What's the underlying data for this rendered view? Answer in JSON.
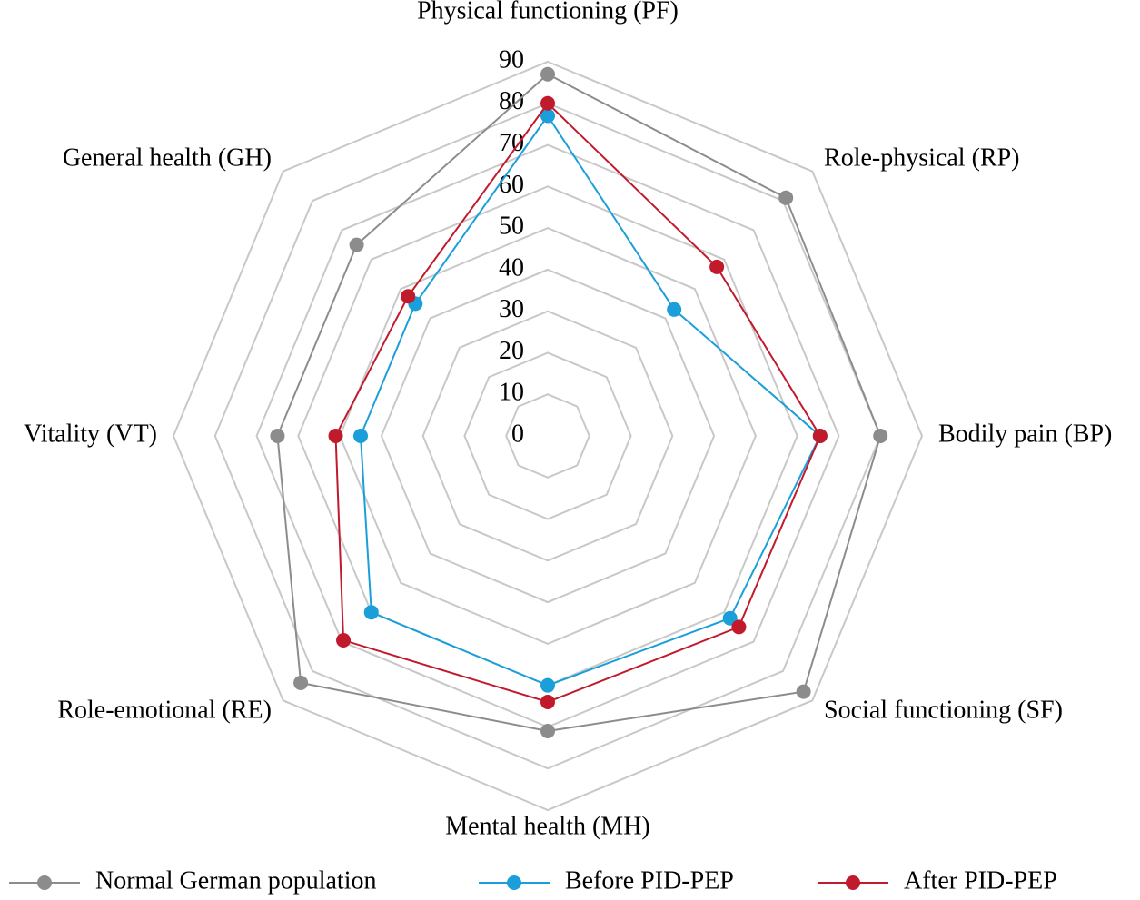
{
  "chart_data": {
    "type": "radar",
    "categories": [
      "Physical functioning (PF)",
      "Role-physical (RP)",
      "Bodily pain (BP)",
      "Social functioning (SF)",
      "Mental health (MH)",
      "Role-emotional (RE)",
      "Vitality (VT)",
      "General health (GH)"
    ],
    "series": [
      {
        "name": "Normal German population",
        "color": "#8c8c8c",
        "values": [
          87,
          81,
          80,
          87,
          71,
          84,
          65,
          65
        ]
      },
      {
        "name": "Before PID-PEP",
        "color": "#1a9fdb",
        "values": [
          77,
          43,
          65.5,
          62,
          60,
          60,
          45,
          45
        ]
      },
      {
        "name": "After PID-PEP",
        "color": "#c01a2c",
        "values": [
          80,
          57.5,
          65.5,
          65,
          64,
          69.5,
          51,
          47.5
        ]
      }
    ],
    "rlim": [
      0,
      90
    ],
    "rticks": [
      0,
      10,
      20,
      30,
      40,
      50,
      60,
      70,
      80,
      90
    ],
    "grid": true,
    "legend": "bottom"
  }
}
